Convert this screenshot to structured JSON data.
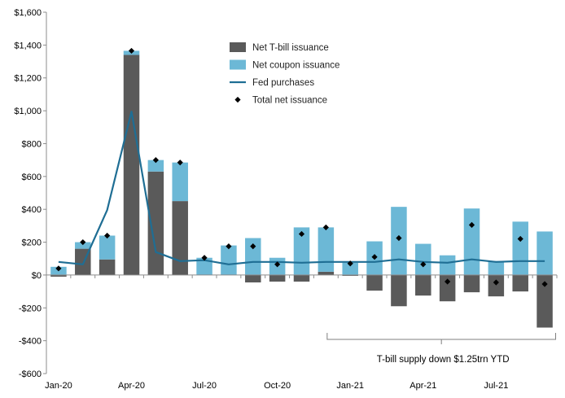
{
  "chart_data": {
    "type": "bar",
    "stacked": true,
    "categories": [
      "Jan-20",
      "Feb-20",
      "Mar-20",
      "Apr-20",
      "May-20",
      "Jun-20",
      "Jul-20",
      "Aug-20",
      "Sep-20",
      "Oct-20",
      "Nov-20",
      "Dec-20",
      "Jan-21",
      "Feb-21",
      "Mar-21",
      "Apr-21",
      "May-21",
      "Jun-21",
      "Jul-21",
      "Aug-21",
      "Sep-21"
    ],
    "x_tick_labels": [
      "Jan-20",
      "Apr-20",
      "Jul-20",
      "Oct-20",
      "Jan-21",
      "Apr-21",
      "Jul-21"
    ],
    "series": [
      {
        "name": "Net T-bill issuance",
        "kind": "bar",
        "color": "#5a5a5a",
        "values": [
          -10,
          160,
          95,
          1340,
          630,
          450,
          0,
          0,
          -45,
          -40,
          -40,
          20,
          -5,
          -95,
          -190,
          -125,
          -160,
          -105,
          -130,
          -100,
          -320
        ]
      },
      {
        "name": "Net coupon issuance",
        "kind": "bar",
        "color": "#6cb8d6",
        "values": [
          50,
          40,
          145,
          25,
          70,
          235,
          105,
          180,
          225,
          105,
          290,
          270,
          75,
          205,
          415,
          190,
          120,
          405,
          85,
          325,
          265
        ]
      },
      {
        "name": "Fed purchases",
        "kind": "line",
        "color": "#1f6e94",
        "values": [
          80,
          65,
          395,
          995,
          140,
          85,
          90,
          65,
          80,
          80,
          75,
          80,
          80,
          80,
          95,
          80,
          75,
          95,
          80,
          85,
          85
        ]
      },
      {
        "name": "Total net issuance",
        "kind": "scatter",
        "color": "#000000",
        "values": [
          40,
          200,
          240,
          1365,
          700,
          685,
          105,
          175,
          175,
          65,
          250,
          290,
          70,
          110,
          225,
          65,
          -40,
          305,
          -45,
          220,
          -55
        ]
      }
    ],
    "ylim": [
      -600,
      1600
    ],
    "y_ticks": [
      -600,
      -400,
      -200,
      0,
      200,
      400,
      600,
      800,
      1000,
      1200,
      1400,
      1600
    ],
    "y_tick_labels": [
      "-$600",
      "-$400",
      "-$200",
      "$0",
      "$200",
      "$400",
      "$600",
      "$800",
      "$1,000",
      "$1,200",
      "$1,400",
      "$1,600"
    ],
    "legend_position": "top-center",
    "grid": false,
    "annotation": {
      "text": "T-bill supply down $1.25trn YTD",
      "from": "Dec-20",
      "to": "Sep-21"
    }
  }
}
